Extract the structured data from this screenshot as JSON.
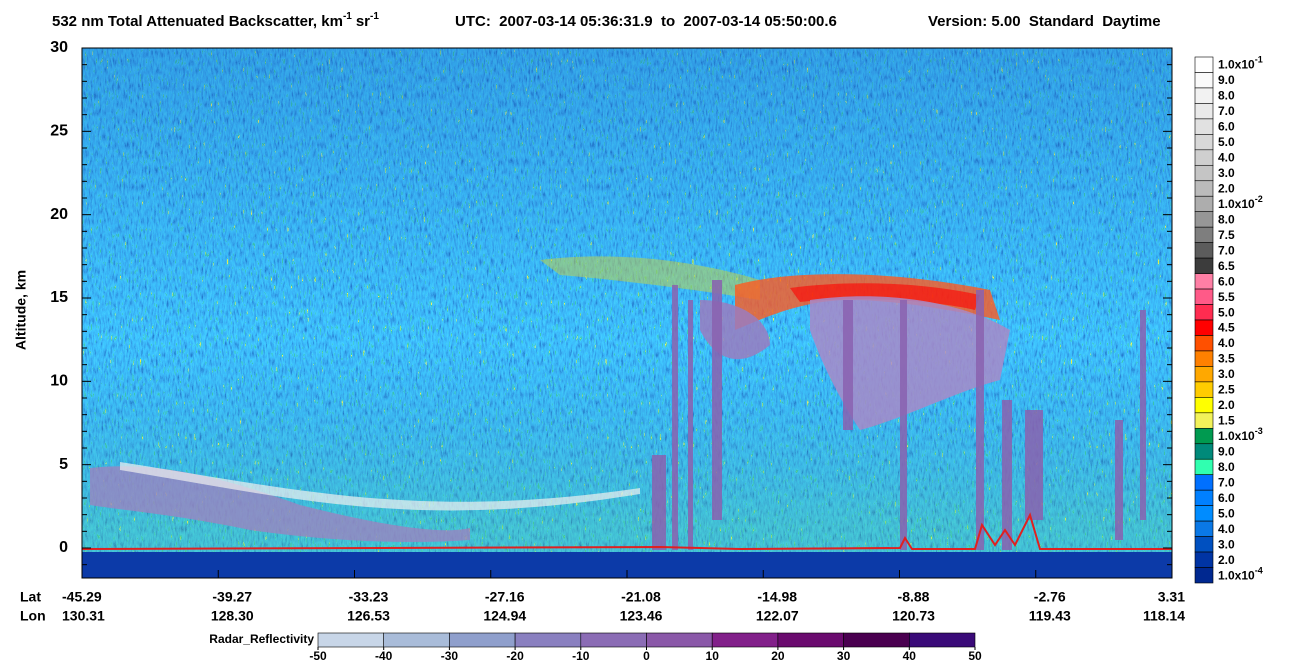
{
  "chart_data": {
    "type": "curtain",
    "title": {
      "main": "532 nm Total Attenuated Backscatter, km",
      "sup1": "-1",
      "unit2": "sr",
      "sup2": "-1",
      "utc": "UTC:  2007-03-14 05:36:31.9  to  2007-03-14 05:50:00.6",
      "version": "Version: 5.00  Standard  Daytime"
    },
    "y_label": "Altitude, km",
    "ylim": [
      -1.8,
      30
    ],
    "yticks": [
      0,
      5,
      10,
      15,
      20,
      25,
      30
    ],
    "yminorticks": [
      -1,
      1,
      2,
      3,
      4,
      6,
      7,
      8,
      9,
      11,
      12,
      13,
      14,
      16,
      17,
      18,
      19,
      21,
      22,
      23,
      24,
      26,
      27,
      28,
      29
    ],
    "x_rows": [
      {
        "name": "Lat",
        "labels": [
          "-45.29",
          "-39.27",
          "-33.23",
          "-27.16",
          "-21.08",
          "-14.98",
          "-8.88",
          "-2.76",
          "3.31"
        ]
      },
      {
        "name": "Lon",
        "labels": [
          "130.31",
          "128.30",
          "126.53",
          "124.94",
          "123.46",
          "122.07",
          "120.73",
          "119.43",
          "118.14"
        ]
      }
    ],
    "colorbar": [
      {
        "label": "1.0x10",
        "exp": "-1",
        "color": "#ffffff"
      },
      {
        "label": "9.0",
        "color": "#fafafa"
      },
      {
        "label": "8.0",
        "color": "#f2f2f2"
      },
      {
        "label": "7.0",
        "color": "#eaeaea"
      },
      {
        "label": "6.0",
        "color": "#e1e1e1"
      },
      {
        "label": "5.0",
        "color": "#d8d8d8"
      },
      {
        "label": "4.0",
        "color": "#cfcfcf"
      },
      {
        "label": "3.0",
        "color": "#c5c5c5"
      },
      {
        "label": "2.0",
        "color": "#bbbbbb"
      },
      {
        "label": "1.0x10",
        "exp": "-2",
        "color": "#adadad"
      },
      {
        "label": "8.0",
        "color": "#969696"
      },
      {
        "label": "7.5",
        "color": "#7e7e7e"
      },
      {
        "label": "7.0",
        "color": "#5c5c5c"
      },
      {
        "label": "6.5",
        "color": "#3c3c3c"
      },
      {
        "label": "6.0",
        "color": "#ff7fa5"
      },
      {
        "label": "5.5",
        "color": "#ff5a88"
      },
      {
        "label": "5.0",
        "color": "#ff2c50"
      },
      {
        "label": "4.5",
        "color": "#ff0000"
      },
      {
        "label": "4.0",
        "color": "#ff5000"
      },
      {
        "label": "3.5",
        "color": "#ff8000"
      },
      {
        "label": "3.0",
        "color": "#ffa800"
      },
      {
        "label": "2.5",
        "color": "#ffcc00"
      },
      {
        "label": "2.0",
        "color": "#ffff00"
      },
      {
        "label": "1.5",
        "color": "#f2f25a"
      },
      {
        "label": "1.0x10",
        "exp": "-3",
        "color": "#009a50"
      },
      {
        "label": "9.0",
        "color": "#008a7a"
      },
      {
        "label": "8.0",
        "color": "#30ffb0"
      },
      {
        "label": "7.0",
        "color": "#0070ff"
      },
      {
        "label": "6.0",
        "color": "#0080ff"
      },
      {
        "label": "5.0",
        "color": "#008cff"
      },
      {
        "label": "4.0",
        "color": "#0a78e6"
      },
      {
        "label": "3.0",
        "color": "#0050c0"
      },
      {
        "label": "2.0",
        "color": "#0034a4"
      },
      {
        "label": "1.0x10",
        "exp": "-4",
        "color": "#002890"
      }
    ],
    "radar_colorbar": {
      "label": "Radar_Reflectivity",
      "lim": [
        -50,
        50
      ],
      "ticks": [
        -50,
        -40,
        -30,
        -20,
        -10,
        0,
        10,
        20,
        30,
        40,
        50
      ],
      "colors": [
        "#c8d6e8",
        "#a9bcd9",
        "#8f9fcc",
        "#8a80c0",
        "#8b6cb5",
        "#8a58a8",
        "#82208a",
        "#6a0a6e",
        "#4a0050",
        "#3a0a78"
      ]
    }
  }
}
